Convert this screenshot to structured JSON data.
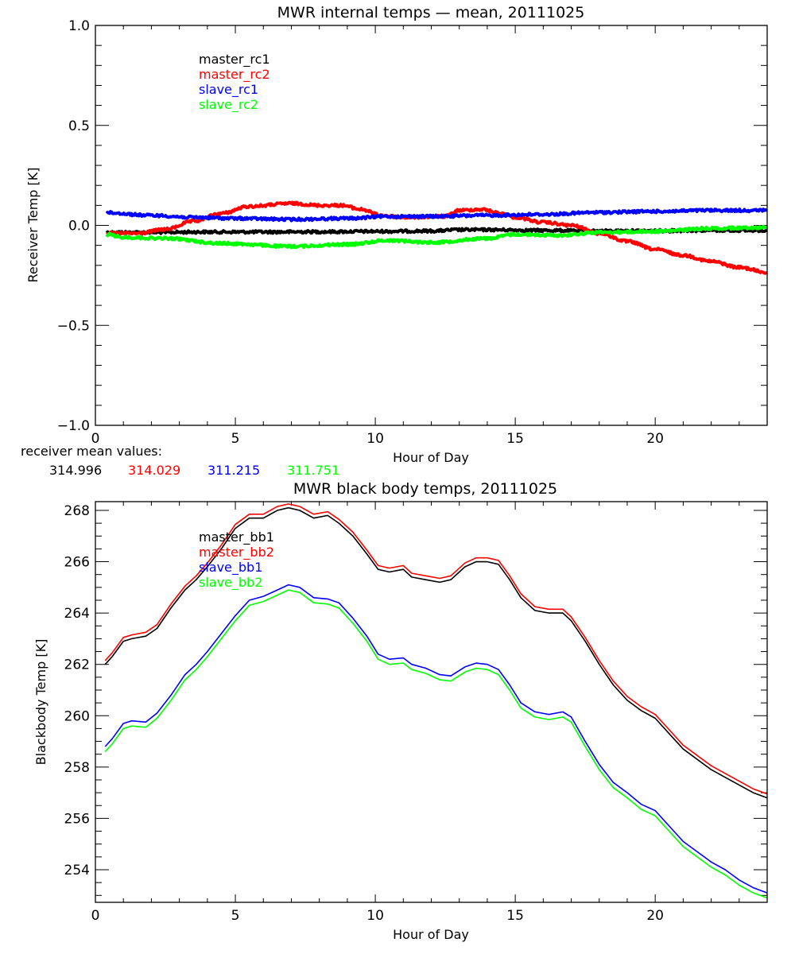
{
  "chart_data": [
    {
      "type": "line",
      "title": "MWR internal temps — mean, 20111025",
      "xlabel": "Hour of Day",
      "ylabel": "Receiver Temp [K]",
      "xlim": [
        0,
        24
      ],
      "ylim": [
        -1.0,
        1.0
      ],
      "xticks": [
        0,
        5,
        10,
        15,
        20
      ],
      "xtick_labels": [
        "0",
        "5",
        "10",
        "15",
        "20"
      ],
      "yticks": [
        -1.0,
        -0.5,
        0.0,
        0.5,
        1.0
      ],
      "ytick_labels": [
        "−1.0",
        "−0.5",
        "0.0",
        "0.5",
        "1.0"
      ],
      "x_minor_step": 1,
      "y_minor_step": 0.1,
      "grid": false,
      "legend_position": "top-left-inside",
      "series": [
        {
          "name": "master_rc1",
          "color": "#000000",
          "x": [
            0.4,
            2,
            4,
            6,
            8,
            10,
            12,
            13,
            14,
            16,
            18,
            20,
            22,
            24
          ],
          "y": [
            -0.035,
            -0.035,
            -0.033,
            -0.033,
            -0.032,
            -0.03,
            -0.028,
            -0.022,
            -0.022,
            -0.025,
            -0.028,
            -0.027,
            -0.025,
            -0.025
          ]
        },
        {
          "name": "master_rc2",
          "color": "#ff0000",
          "x": [
            0.4,
            1.5,
            2.5,
            3.5,
            4.5,
            5.5,
            7,
            8,
            8.8,
            9.5,
            10.2,
            11,
            12.5,
            13,
            13.8,
            14.5,
            15,
            16,
            17,
            18,
            19,
            20,
            21,
            22,
            23,
            24
          ],
          "y": [
            -0.04,
            -0.04,
            -0.02,
            0.02,
            0.06,
            0.095,
            0.11,
            0.1,
            0.1,
            0.08,
            0.05,
            0.04,
            0.045,
            0.075,
            0.08,
            0.06,
            0.04,
            0.015,
            0.0,
            -0.04,
            -0.08,
            -0.12,
            -0.15,
            -0.18,
            -0.21,
            -0.235
          ]
        },
        {
          "name": "slave_rc1",
          "color": "#0000ff",
          "x": [
            0.4,
            2,
            3.5,
            5,
            7,
            9,
            10.5,
            12,
            14,
            16,
            18,
            20,
            22,
            24
          ],
          "y": [
            0.063,
            0.05,
            0.04,
            0.035,
            0.03,
            0.035,
            0.045,
            0.045,
            0.05,
            0.055,
            0.065,
            0.07,
            0.075,
            0.075
          ]
        },
        {
          "name": "slave_rc2",
          "color": "#00ff00",
          "x": [
            0.4,
            1,
            2.5,
            4.5,
            7,
            9,
            10.5,
            12,
            14,
            15,
            16.5,
            18,
            20,
            22,
            24
          ],
          "y": [
            -0.045,
            -0.06,
            -0.065,
            -0.09,
            -0.105,
            -0.095,
            -0.075,
            -0.085,
            -0.065,
            -0.045,
            -0.05,
            -0.035,
            -0.03,
            -0.015,
            -0.01
          ]
        }
      ],
      "annotation": {
        "label": "receiver mean values:",
        "values": [
          {
            "text": "314.996",
            "color": "#000000"
          },
          {
            "text": "314.029",
            "color": "#ff0000"
          },
          {
            "text": "311.215",
            "color": "#0000ff"
          },
          {
            "text": "311.751",
            "color": "#00ff00"
          }
        ]
      }
    },
    {
      "type": "line",
      "title": "MWR black body temps, 20111025",
      "xlabel": "Hour of Day",
      "ylabel": "Blackbody Temp [K]",
      "xlim": [
        0,
        24
      ],
      "ylim": [
        252.73,
        268.34
      ],
      "xticks": [
        0,
        5,
        10,
        15,
        20
      ],
      "xtick_labels": [
        "0",
        "5",
        "10",
        "15",
        "20"
      ],
      "yticks": [
        254,
        256,
        258,
        260,
        262,
        264,
        266,
        268
      ],
      "ytick_labels": [
        "254",
        "256",
        "258",
        "260",
        "262",
        "264",
        "266",
        "268"
      ],
      "x_minor_step": 1,
      "y_minor_step": 0.5,
      "grid": false,
      "legend_position": "top-left-inside",
      "series": [
        {
          "name": "master_bb1",
          "color": "#000000",
          "x": [
            0.35,
            0.6,
            1.0,
            1.3,
            1.8,
            2.2,
            2.7,
            3.2,
            3.6,
            4.0,
            4.5,
            5.0,
            5.5,
            6.0,
            6.5,
            6.9,
            7.3,
            7.8,
            8.3,
            8.7,
            9.2,
            9.7,
            10.1,
            10.5,
            11.0,
            11.3,
            11.8,
            12.3,
            12.7,
            13.2,
            13.6,
            14.0,
            14.4,
            14.8,
            15.2,
            15.7,
            16.2,
            16.7,
            17.0,
            17.5,
            18.0,
            18.5,
            19.0,
            19.5,
            20.0,
            20.5,
            21.0,
            21.5,
            22.0,
            22.5,
            23.0,
            23.5,
            24.0
          ],
          "y": [
            262.0,
            262.3,
            262.9,
            263.0,
            263.1,
            263.4,
            264.2,
            264.9,
            265.3,
            265.8,
            266.5,
            267.3,
            267.7,
            267.7,
            268.0,
            268.1,
            268.0,
            267.7,
            267.8,
            267.5,
            267.0,
            266.3,
            265.7,
            265.6,
            265.7,
            265.4,
            265.3,
            265.2,
            265.3,
            265.8,
            266.0,
            266.0,
            265.9,
            265.3,
            264.6,
            264.1,
            264.0,
            264.0,
            263.7,
            262.9,
            262.0,
            261.2,
            260.6,
            260.2,
            259.9,
            259.3,
            258.7,
            258.3,
            257.9,
            257.6,
            257.3,
            257.0,
            256.8
          ]
        },
        {
          "name": "master_bb2",
          "color": "#ff0000",
          "x": [
            0.35,
            0.6,
            1.0,
            1.3,
            1.8,
            2.2,
            2.7,
            3.2,
            3.6,
            4.0,
            4.5,
            5.0,
            5.5,
            6.0,
            6.5,
            6.9,
            7.3,
            7.8,
            8.3,
            8.7,
            9.2,
            9.7,
            10.1,
            10.5,
            11.0,
            11.3,
            11.8,
            12.3,
            12.7,
            13.2,
            13.6,
            14.0,
            14.4,
            14.8,
            15.2,
            15.7,
            16.2,
            16.7,
            17.0,
            17.5,
            18.0,
            18.5,
            19.0,
            19.5,
            20.0,
            20.5,
            21.0,
            21.5,
            22.0,
            22.5,
            23.0,
            23.5,
            24.0
          ],
          "y": [
            262.15,
            262.45,
            263.05,
            263.15,
            263.25,
            263.55,
            264.35,
            265.05,
            265.45,
            265.95,
            266.65,
            267.45,
            267.85,
            267.85,
            268.15,
            268.25,
            268.15,
            267.85,
            267.95,
            267.65,
            267.15,
            266.45,
            265.85,
            265.75,
            265.85,
            265.55,
            265.45,
            265.35,
            265.45,
            265.95,
            266.15,
            266.15,
            266.05,
            265.45,
            264.75,
            264.25,
            264.15,
            264.15,
            263.85,
            263.05,
            262.15,
            261.35,
            260.75,
            260.35,
            260.05,
            259.45,
            258.85,
            258.45,
            258.05,
            257.75,
            257.45,
            257.15,
            256.95
          ]
        },
        {
          "name": "slave_bb1",
          "color": "#0000ff",
          "x": [
            0.35,
            0.6,
            1.0,
            1.3,
            1.8,
            2.2,
            2.7,
            3.2,
            3.6,
            4.0,
            4.5,
            5.0,
            5.5,
            6.0,
            6.5,
            6.9,
            7.3,
            7.8,
            8.3,
            8.7,
            9.2,
            9.7,
            10.1,
            10.5,
            11.0,
            11.3,
            11.8,
            12.3,
            12.7,
            13.2,
            13.6,
            14.0,
            14.4,
            14.8,
            15.2,
            15.7,
            16.2,
            16.7,
            17.0,
            17.5,
            18.0,
            18.5,
            19.0,
            19.5,
            20.0,
            20.5,
            21.0,
            21.5,
            22.0,
            22.5,
            23.0,
            23.5,
            24.0
          ],
          "y": [
            258.8,
            259.1,
            259.7,
            259.8,
            259.75,
            260.1,
            260.8,
            261.6,
            262.0,
            262.5,
            263.2,
            263.9,
            264.5,
            264.65,
            264.9,
            265.1,
            265.0,
            264.6,
            264.55,
            264.4,
            263.8,
            263.1,
            262.4,
            262.2,
            262.25,
            262.0,
            261.85,
            261.6,
            261.55,
            261.9,
            262.05,
            262.0,
            261.8,
            261.2,
            260.5,
            260.15,
            260.05,
            260.15,
            259.95,
            259.0,
            258.1,
            257.4,
            257.0,
            256.55,
            256.3,
            255.7,
            255.1,
            254.7,
            254.3,
            254.0,
            253.6,
            253.3,
            253.1
          ]
        },
        {
          "name": "slave_bb2",
          "color": "#00ff00",
          "x": [
            0.35,
            0.6,
            1.0,
            1.3,
            1.8,
            2.2,
            2.7,
            3.2,
            3.6,
            4.0,
            4.5,
            5.0,
            5.5,
            6.0,
            6.5,
            6.9,
            7.3,
            7.8,
            8.3,
            8.7,
            9.2,
            9.7,
            10.1,
            10.5,
            11.0,
            11.3,
            11.8,
            12.3,
            12.7,
            13.2,
            13.6,
            14.0,
            14.4,
            14.8,
            15.2,
            15.7,
            16.2,
            16.7,
            17.0,
            17.5,
            18.0,
            18.5,
            19.0,
            19.5,
            20.0,
            20.5,
            21.0,
            21.5,
            22.0,
            22.5,
            23.0,
            23.5,
            24.0
          ],
          "y": [
            258.6,
            258.9,
            259.5,
            259.6,
            259.55,
            259.9,
            260.6,
            261.4,
            261.8,
            262.3,
            263.0,
            263.7,
            264.3,
            264.45,
            264.7,
            264.9,
            264.8,
            264.4,
            264.35,
            264.2,
            263.6,
            262.9,
            262.2,
            262.0,
            262.05,
            261.8,
            261.65,
            261.4,
            261.35,
            261.7,
            261.85,
            261.8,
            261.6,
            261.0,
            260.3,
            259.95,
            259.85,
            259.95,
            259.75,
            258.8,
            257.9,
            257.2,
            256.8,
            256.35,
            256.1,
            255.5,
            254.9,
            254.5,
            254.1,
            253.8,
            253.4,
            253.1,
            252.9
          ]
        }
      ]
    }
  ]
}
